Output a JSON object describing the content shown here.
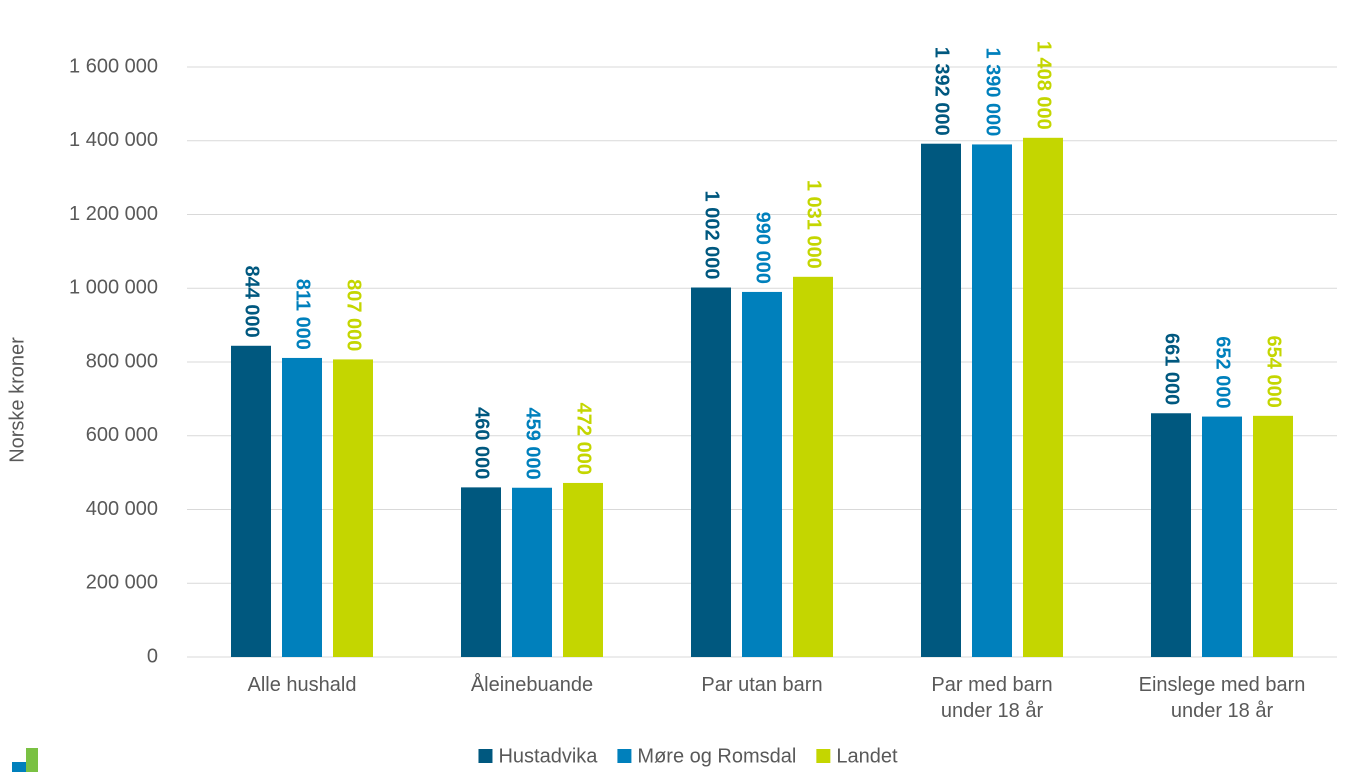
{
  "chart_data": {
    "type": "bar",
    "y_label": "Norske kroner",
    "categories": [
      "Alle hushald",
      "Åleinebuande",
      "Par utan barn",
      "Par med barn\nunder 18 år",
      "Einslege med barn\nunder 18 år"
    ],
    "series": [
      {
        "name": "Hustadvika",
        "color": "#00587f",
        "values": [
          844000,
          460000,
          1002000,
          1392000,
          661000
        ],
        "value_labels": [
          "844 000",
          "460 000",
          "1 002 000",
          "1 392 000",
          "661 000"
        ]
      },
      {
        "name": "Møre og Romsdal",
        "color": "#0080bc",
        "values": [
          811000,
          459000,
          990000,
          1390000,
          652000
        ],
        "value_labels": [
          "811 000",
          "459 000",
          "990 000",
          "1 390 000",
          "652 000"
        ]
      },
      {
        "name": "Landet",
        "color": "#c4d600",
        "values": [
          807000,
          472000,
          1031000,
          1408000,
          654000
        ],
        "value_labels": [
          "807 000",
          "472 000",
          "1 031 000",
          "1 408 000",
          "654 000"
        ]
      }
    ],
    "ylim": [
      0,
      1600000
    ],
    "yticks": [
      0,
      {
        "value": 200000,
        "label": "200 000"
      },
      {
        "value": 400000,
        "label": "400 000"
      },
      {
        "value": 600000,
        "label": "600 000"
      },
      {
        "value": 800000,
        "label": "800 000"
      },
      {
        "value": 1000000,
        "label": "1 000 000"
      },
      {
        "value": 1200000,
        "label": "1 200 000"
      },
      {
        "value": 1400000,
        "label": "1 400 000"
      },
      {
        "value": 1600000,
        "label": "1 600 000"
      }
    ],
    "grid": true,
    "legend": "bottom"
  }
}
